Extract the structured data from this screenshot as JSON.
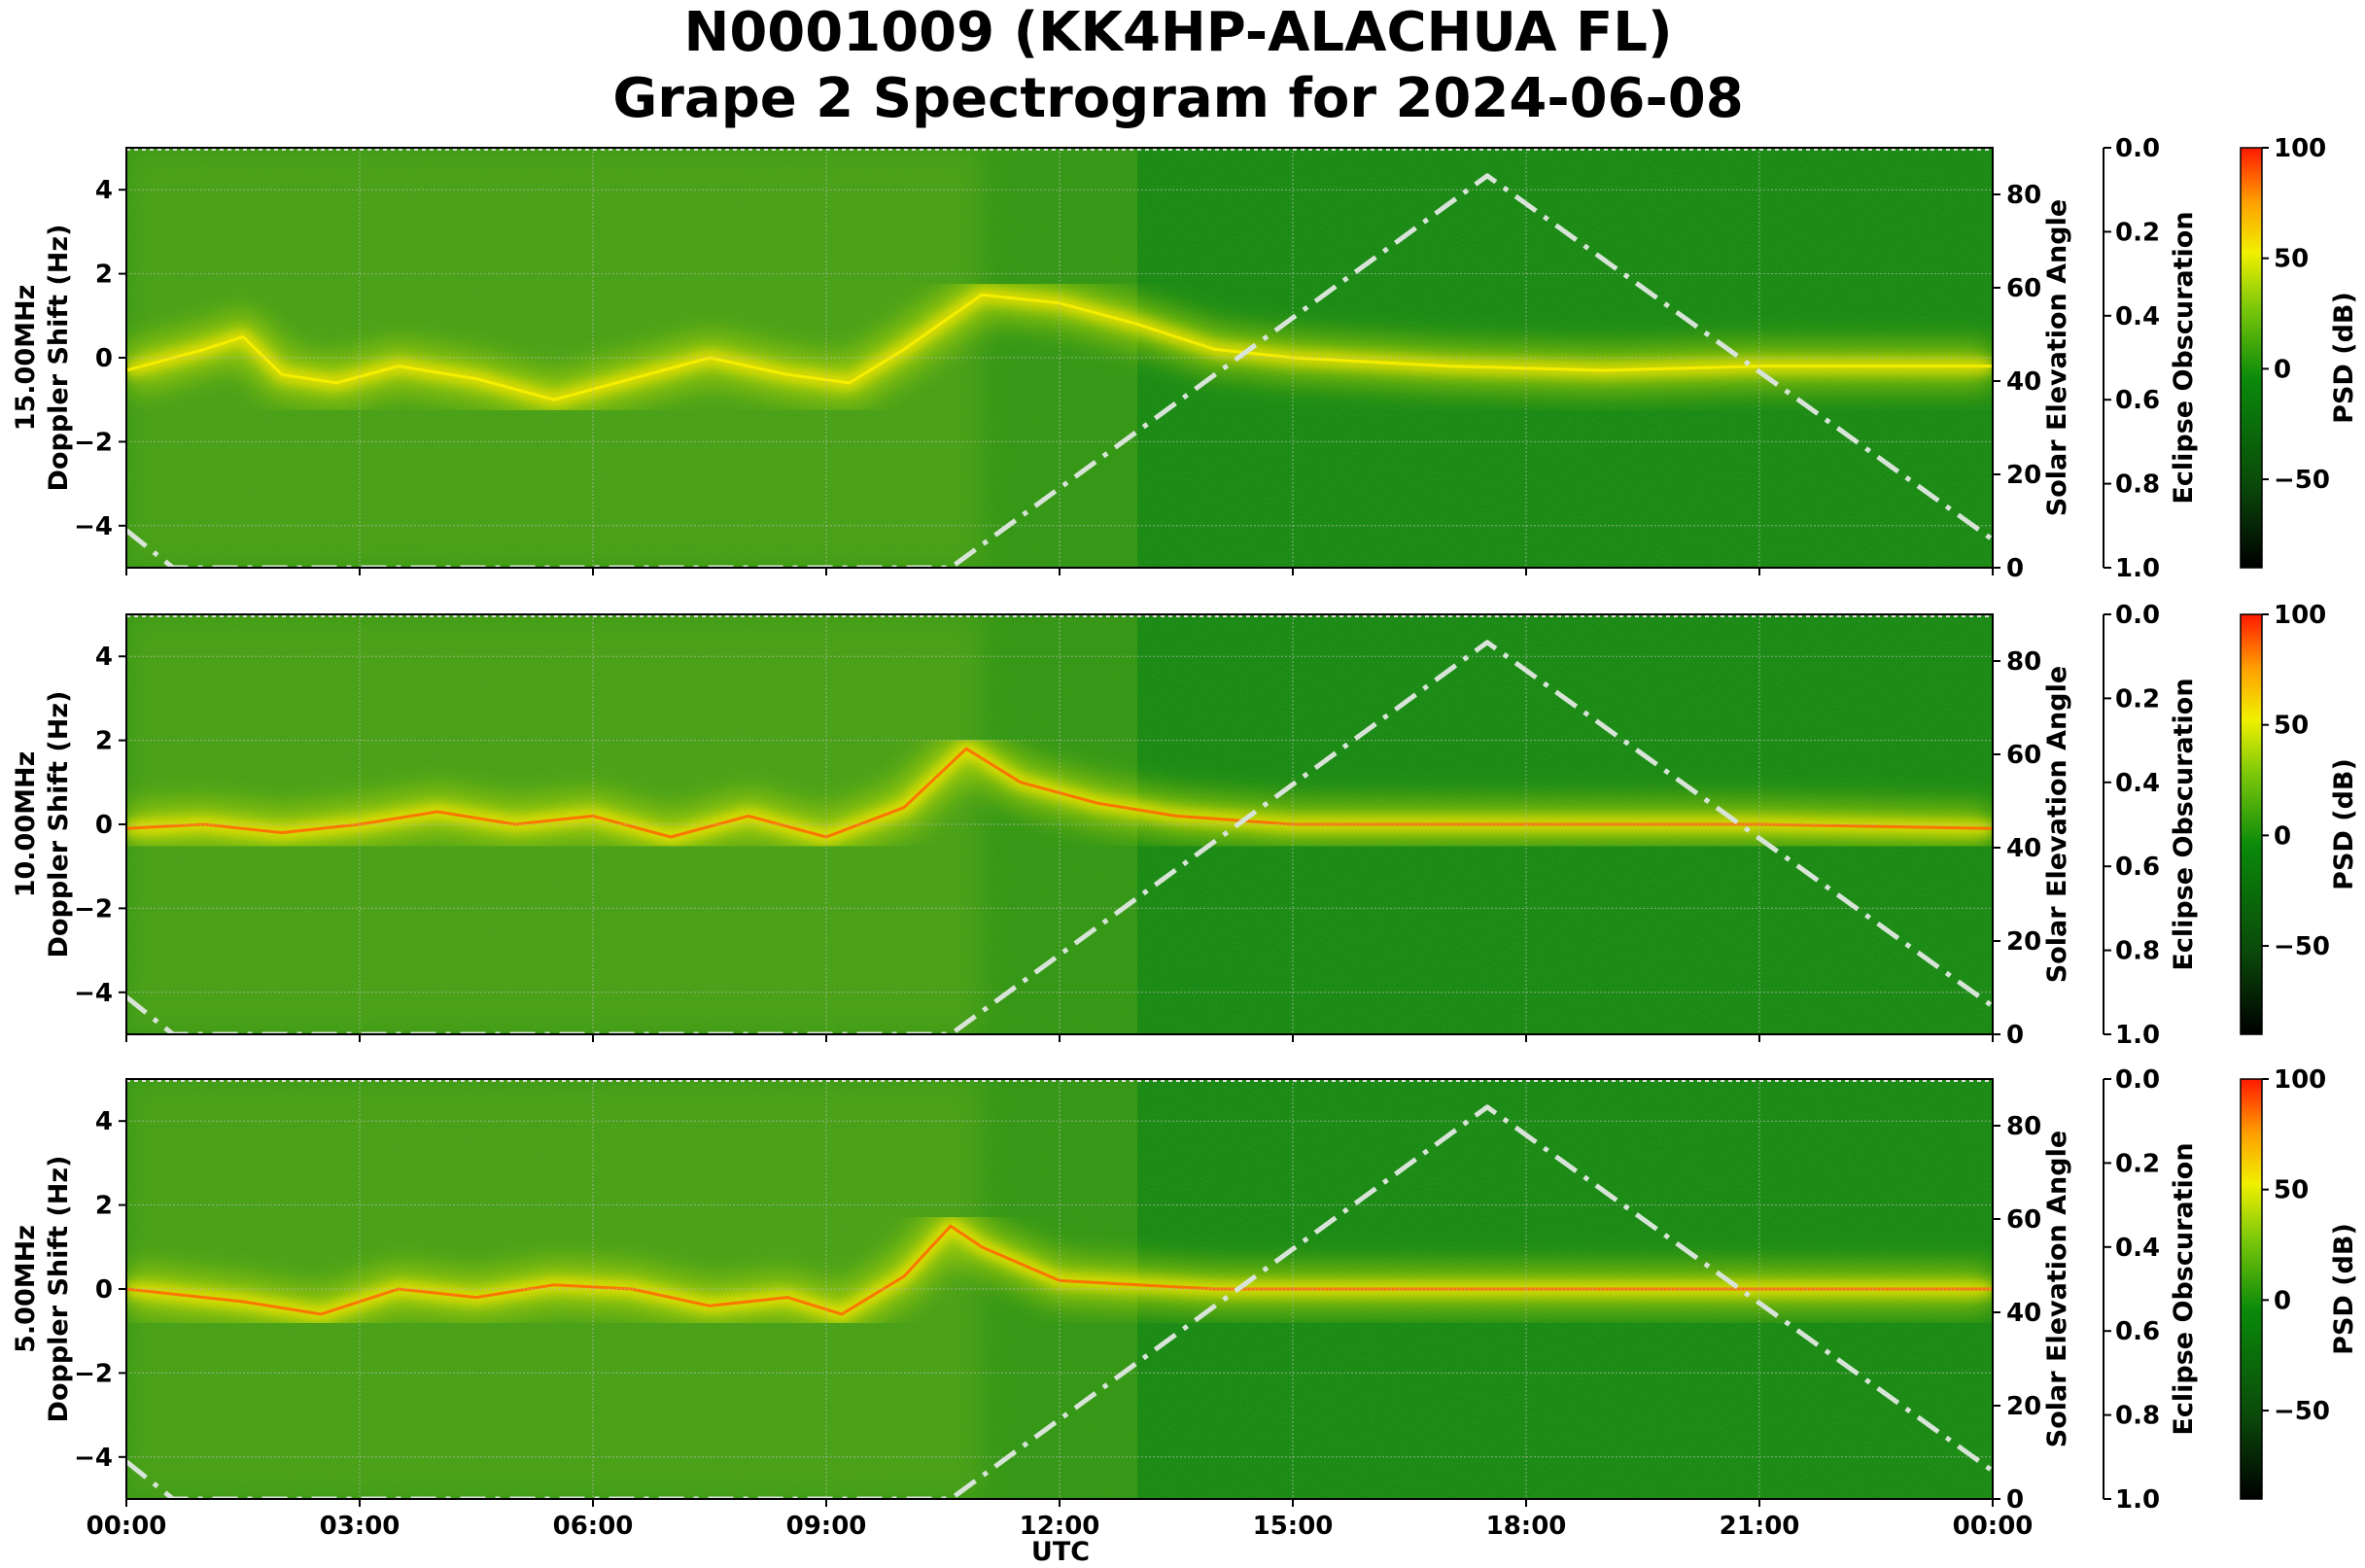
{
  "title": {
    "line1": "N0001009 (KK4HP-ALACHUA FL)",
    "line2": "Grape 2 Spectrogram for 2024-06-08"
  },
  "chart_data": {
    "type": "heatmap",
    "title": "N0001009 (KK4HP-ALACHUA FL) Grape 2 Spectrogram for 2024-06-08",
    "xlabel": "UTC",
    "x_ticks": [
      "00:00",
      "03:00",
      "06:00",
      "09:00",
      "12:00",
      "15:00",
      "18:00",
      "21:00",
      "00:00"
    ],
    "x_range_hours": [
      0,
      24
    ],
    "grid": true,
    "panels": [
      {
        "ylabel": "15.00MHz\nDoppler Shift (Hz)",
        "y_ticks": [
          -4,
          -2,
          0,
          2,
          4
        ],
        "ylim": [
          -5,
          5
        ],
        "right_axis": {
          "label": "Solar Elevation Angle",
          "ticks": [
            0,
            20,
            40,
            60,
            80
          ],
          "lim": [
            0,
            90
          ]
        },
        "obscuration_axis": {
          "label": "Eclipse Obscuration",
          "ticks": [
            "0.0",
            "0.2",
            "0.4",
            "0.6",
            "0.8",
            "1.0"
          ],
          "lim": [
            0,
            1
          ]
        },
        "colorbar": {
          "label": "PSD (dB)",
          "ticks": [
            100,
            50,
            0,
            -50
          ],
          "range": [
            -90,
            100
          ]
        },
        "doppler_trace": [
          [
            0,
            -0.3
          ],
          [
            1,
            0.2
          ],
          [
            1.5,
            0.5
          ],
          [
            2,
            -0.4
          ],
          [
            2.7,
            -0.6
          ],
          [
            3.5,
            -0.2
          ],
          [
            4.5,
            -0.5
          ],
          [
            5.5,
            -1.0
          ],
          [
            6.5,
            -0.5
          ],
          [
            7.5,
            0.0
          ],
          [
            8.5,
            -0.4
          ],
          [
            9.3,
            -0.6
          ],
          [
            10,
            0.2
          ],
          [
            11,
            1.5
          ],
          [
            12,
            1.3
          ],
          [
            13,
            0.8
          ],
          [
            14,
            0.2
          ],
          [
            15,
            0.0
          ],
          [
            17,
            -0.2
          ],
          [
            19,
            -0.3
          ],
          [
            21,
            -0.2
          ],
          [
            24,
            -0.2
          ]
        ],
        "solar_elevation": [
          [
            0,
            8
          ],
          [
            0.6,
            0
          ],
          [
            10.6,
            0
          ],
          [
            17.5,
            84
          ],
          [
            24,
            6
          ]
        ]
      },
      {
        "ylabel": "10.00MHz\nDoppler Shift (Hz)",
        "y_ticks": [
          -4,
          -2,
          0,
          2,
          4
        ],
        "ylim": [
          -5,
          5
        ],
        "right_axis": {
          "label": "Solar Elevation Angle",
          "ticks": [
            0,
            20,
            40,
            60,
            80
          ],
          "lim": [
            0,
            90
          ]
        },
        "obscuration_axis": {
          "label": "Eclipse Obscuration",
          "ticks": [
            "0.0",
            "0.2",
            "0.4",
            "0.6",
            "0.8",
            "1.0"
          ],
          "lim": [
            0,
            1
          ]
        },
        "colorbar": {
          "label": "PSD (dB)",
          "ticks": [
            100,
            50,
            0,
            -50
          ],
          "range": [
            -90,
            100
          ]
        },
        "doppler_trace": [
          [
            0,
            -0.1
          ],
          [
            1,
            0.0
          ],
          [
            2,
            -0.2
          ],
          [
            3,
            0.0
          ],
          [
            4,
            0.3
          ],
          [
            5,
            0.0
          ],
          [
            6,
            0.2
          ],
          [
            7,
            -0.3
          ],
          [
            8,
            0.2
          ],
          [
            9,
            -0.3
          ],
          [
            10,
            0.4
          ],
          [
            10.8,
            1.8
          ],
          [
            11.5,
            1.0
          ],
          [
            12.5,
            0.5
          ],
          [
            13.5,
            0.2
          ],
          [
            15,
            0.0
          ],
          [
            18,
            0.0
          ],
          [
            21,
            0.0
          ],
          [
            24,
            -0.1
          ]
        ],
        "solar_elevation": [
          [
            0,
            8
          ],
          [
            0.6,
            0
          ],
          [
            10.6,
            0
          ],
          [
            17.5,
            84
          ],
          [
            24,
            6
          ]
        ]
      },
      {
        "ylabel": "5.00MHz\nDoppler Shift (Hz)",
        "y_ticks": [
          -4,
          -2,
          0,
          2,
          4
        ],
        "ylim": [
          -5,
          5
        ],
        "right_axis": {
          "label": "Solar Elevation Angle",
          "ticks": [
            0,
            20,
            40,
            60,
            80
          ],
          "lim": [
            0,
            90
          ]
        },
        "obscuration_axis": {
          "label": "Eclipse Obscuration",
          "ticks": [
            "0.0",
            "0.2",
            "0.4",
            "0.6",
            "0.8",
            "1.0"
          ],
          "lim": [
            0,
            1
          ]
        },
        "colorbar": {
          "label": "PSD (dB)",
          "ticks": [
            100,
            50,
            0,
            -50
          ],
          "range": [
            -90,
            100
          ]
        },
        "doppler_trace": [
          [
            0,
            0.0
          ],
          [
            1.5,
            -0.3
          ],
          [
            2.5,
            -0.6
          ],
          [
            3.5,
            0.0
          ],
          [
            4.5,
            -0.2
          ],
          [
            5.5,
            0.1
          ],
          [
            6.5,
            0.0
          ],
          [
            7.5,
            -0.4
          ],
          [
            8.5,
            -0.2
          ],
          [
            9.2,
            -0.6
          ],
          [
            10,
            0.3
          ],
          [
            10.6,
            1.5
          ],
          [
            11,
            1.0
          ],
          [
            12,
            0.2
          ],
          [
            14,
            0.0
          ],
          [
            24,
            0.0
          ]
        ],
        "solar_elevation": [
          [
            0,
            8
          ],
          [
            0.6,
            0
          ],
          [
            10.6,
            0
          ],
          [
            17.5,
            84
          ],
          [
            24,
            6
          ]
        ]
      }
    ]
  }
}
